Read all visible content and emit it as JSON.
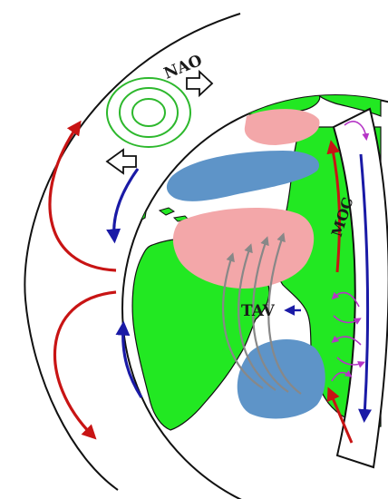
{
  "labels": {
    "nao": "NAO",
    "moc": "MOC",
    "tav": "TAV"
  },
  "colors": {
    "land": "#22e822",
    "warm_anomaly": "#f3a7a9",
    "cold_anomaly": "#5e94c8",
    "warm_current": "#c81414",
    "cold_current": "#1a1aa6",
    "trade_wind": "#888888",
    "pressure_contour": "#2db82d",
    "moc_loop": "#b535c6",
    "outline": "#111111"
  },
  "icons": {
    "pressure_system": "concentric-isobar-icon",
    "shift_arrow": "hollow-arrow-icon"
  }
}
